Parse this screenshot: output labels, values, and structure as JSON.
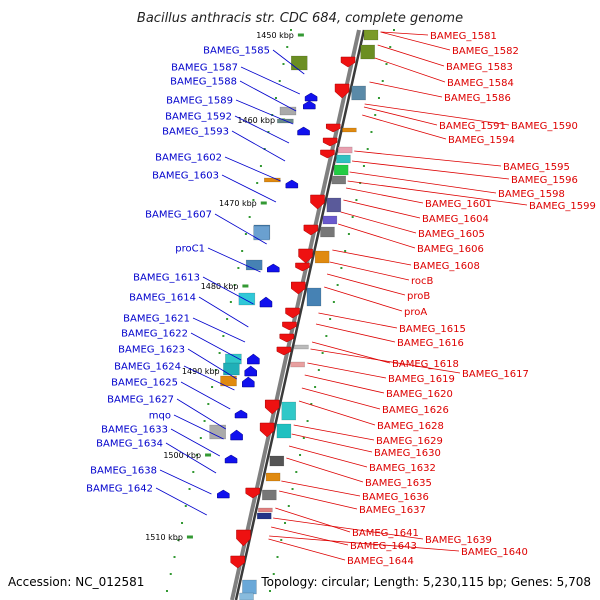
{
  "title": "Bacillus anthracis str. CDC 684, complete genome",
  "footer": {
    "accession": "Accession: NC_012581",
    "topology": "Topology: circular; Length: 5,230,115 bp; Genes: 5,708"
  },
  "ticks": [
    "1450 kbp",
    "1460 kbp",
    "1470 kbp",
    "1480 kbp",
    "1490 kbp",
    "1500 kbp",
    "1510 kbp"
  ],
  "colors": {
    "backbone": "#808080",
    "left_label": "#0000cc",
    "right_label": "#dd0000",
    "plus_strand_gene": "#ee1111",
    "minus_strand_gene": "#1111ee",
    "tick_mark": "#339933"
  },
  "left_genes": [
    "BAMEG_1585",
    "BAMEG_1587",
    "BAMEG_1588",
    "BAMEG_1589",
    "BAMEG_1592",
    "BAMEG_1593",
    "BAMEG_1602",
    "BAMEG_1603",
    "BAMEG_1607",
    "proC1",
    "BAMEG_1613",
    "BAMEG_1614",
    "BAMEG_1621",
    "BAMEG_1622",
    "BAMEG_1623",
    "BAMEG_1624",
    "BAMEG_1625",
    "BAMEG_1627",
    "mqo",
    "BAMEG_1633",
    "BAMEG_1634",
    "BAMEG_1638",
    "BAMEG_1642"
  ],
  "right_genes": [
    "BAMEG_1581",
    "BAMEG_1582",
    "BAMEG_1583",
    "BAMEG_1584",
    "BAMEG_1586",
    "BAMEG_1591",
    "BAMEG_1590",
    "BAMEG_1594",
    "BAMEG_1595",
    "BAMEG_1596",
    "BAMEG_1598",
    "BAMEG_1599",
    "BAMEG_1601",
    "BAMEG_1604",
    "BAMEG_1605",
    "BAMEG_1606",
    "BAMEG_1608",
    "rocB",
    "proB",
    "proA",
    "BAMEG_1615",
    "BAMEG_1616",
    "BAMEG_1618",
    "BAMEG_1617",
    "BAMEG_1619",
    "BAMEG_1620",
    "BAMEG_1626",
    "BAMEG_1628",
    "BAMEG_1629",
    "BAMEG_1630",
    "BAMEG_1632",
    "BAMEG_1635",
    "BAMEG_1636",
    "BAMEG_1637",
    "BAMEG_1639",
    "BAMEG_1641",
    "BAMEG_1640",
    "BAMEG_1643",
    "BAMEG_1644"
  ]
}
